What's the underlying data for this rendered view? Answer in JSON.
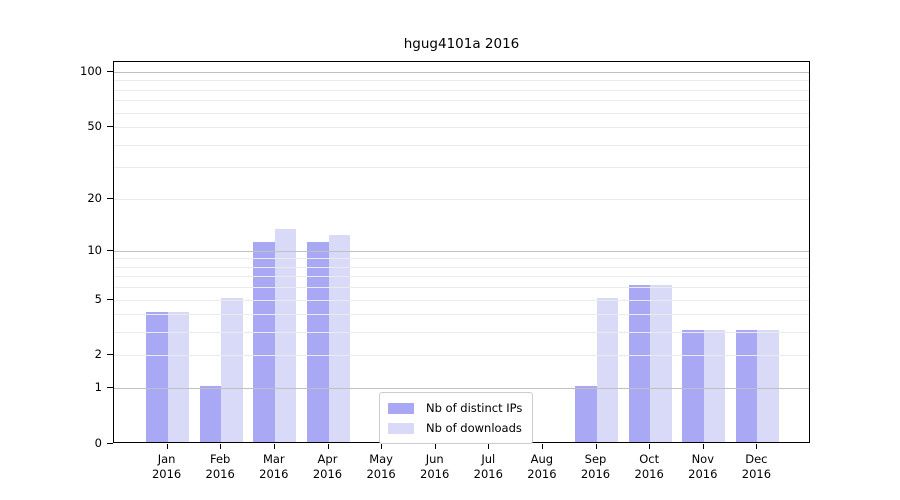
{
  "chart_data": {
    "type": "bar",
    "title": "hgug4101a 2016",
    "year": "2016",
    "months": [
      "Jan",
      "Feb",
      "Mar",
      "Apr",
      "May",
      "Jun",
      "Jul",
      "Aug",
      "Sep",
      "Oct",
      "Nov",
      "Dec"
    ],
    "categories": [
      "Jan 2016",
      "Feb 2016",
      "Mar 2016",
      "Apr 2016",
      "May 2016",
      "Jun 2016",
      "Jul 2016",
      "Aug 2016",
      "Sep 2016",
      "Oct 2016",
      "Nov 2016",
      "Dec 2016"
    ],
    "series": [
      {
        "name": "Nb of distinct IPs",
        "color": "#a8a8f4",
        "values": [
          4,
          1,
          11,
          11,
          0,
          0,
          0,
          0,
          1,
          6,
          3,
          3
        ]
      },
      {
        "name": "Nb of downloads",
        "color": "#d9d9f8",
        "values": [
          4,
          5,
          13,
          12,
          0,
          0,
          0,
          0,
          5,
          6,
          3,
          3
        ]
      }
    ],
    "xlabel": "",
    "ylabel": "",
    "scale": "log1p",
    "ylim": [
      0,
      113.3
    ],
    "y_ticks": [
      0,
      1,
      2,
      5,
      10,
      20,
      50,
      100
    ],
    "gridlines_major": [
      1,
      10,
      100
    ],
    "gridlines_minor": [
      2,
      3,
      4,
      5,
      6,
      7,
      8,
      9,
      20,
      30,
      40,
      50,
      60,
      70,
      80,
      90
    ],
    "grid": "on",
    "legend_position": "lower-center"
  },
  "colors": {
    "axis": "#000000",
    "grid_major": "#c0c0c0",
    "grid_minor": "#ebebeb",
    "legend_border": "#cccccc",
    "background": "#ffffff"
  }
}
